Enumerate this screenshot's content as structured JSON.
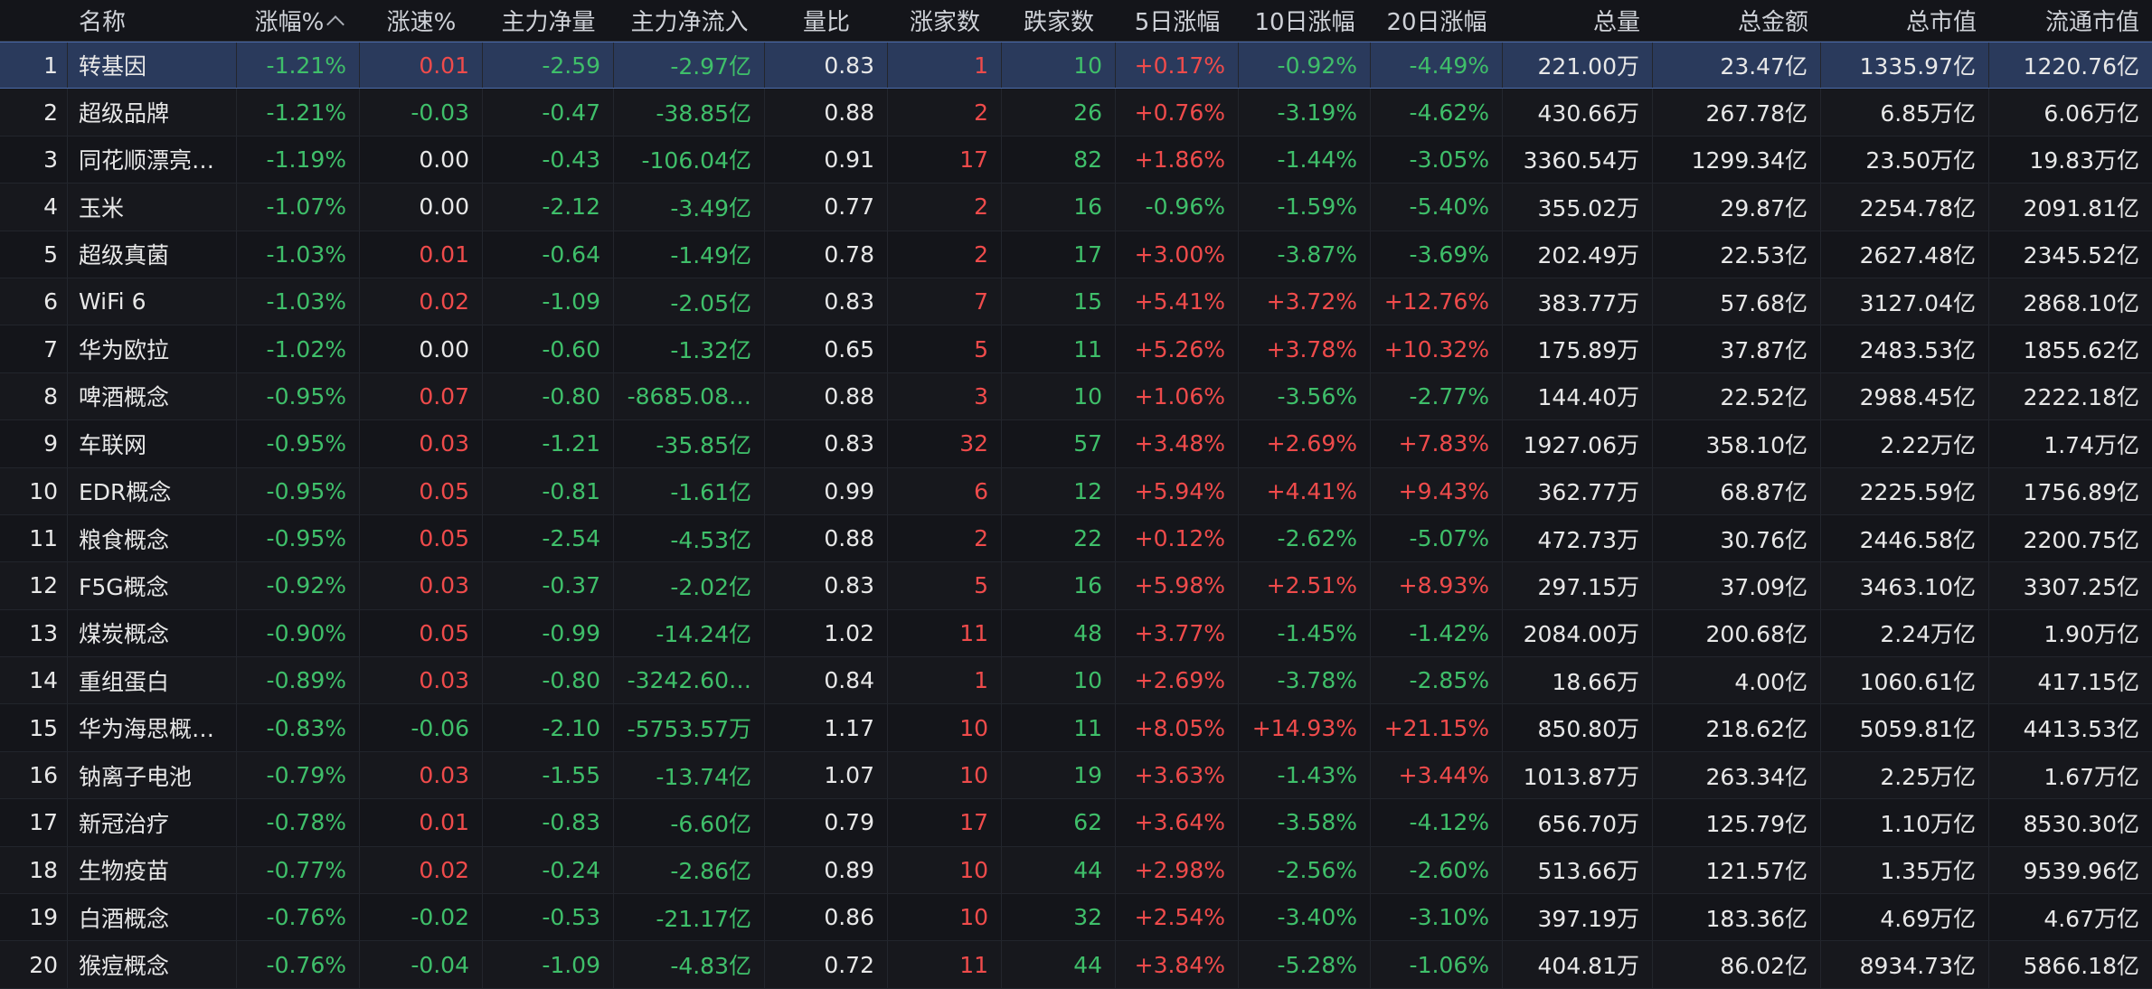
{
  "columns": {
    "name": "名称",
    "change_pct": "涨幅%",
    "speed_pct": "涨速%",
    "main_net": "主力净量",
    "main_inflow": "主力净流入",
    "volume_ratio": "量比",
    "up_count": "涨家数",
    "down_count": "跌家数",
    "d5": "5日涨幅",
    "d10": "10日涨幅",
    "d20": "20日涨幅",
    "volume": "总量",
    "amount": "总金额",
    "market_cap": "总市值",
    "float_cap": "流通市值"
  },
  "colors": {
    "up": "#ef4b4b",
    "down": "#3fbf6a",
    "selected_bg": "#2a3a5c"
  },
  "rows": [
    {
      "idx": "1",
      "name": "转基因",
      "chg": "-1.21%",
      "spd": "0.01",
      "net": "-2.59",
      "inflow": "-2.97亿",
      "vr": "0.83",
      "upc": "1",
      "dnc": "10",
      "d5": "+0.17%",
      "d10": "-0.92%",
      "d20": "-4.49%",
      "vol": "221.00万",
      "amt": "23.47亿",
      "mcap": "1335.97亿",
      "fcap": "1220.76亿"
    },
    {
      "idx": "2",
      "name": "超级品牌",
      "chg": "-1.21%",
      "spd": "-0.03",
      "net": "-0.47",
      "inflow": "-38.85亿",
      "vr": "0.88",
      "upc": "2",
      "dnc": "26",
      "d5": "+0.76%",
      "d10": "-3.19%",
      "d20": "-4.62%",
      "vol": "430.66万",
      "amt": "267.78亿",
      "mcap": "6.85万亿",
      "fcap": "6.06万亿"
    },
    {
      "idx": "3",
      "name": "同花顺漂亮…",
      "chg": "-1.19%",
      "spd": "0.00",
      "net": "-0.43",
      "inflow": "-106.04亿",
      "vr": "0.91",
      "upc": "17",
      "dnc": "82",
      "d5": "+1.86%",
      "d10": "-1.44%",
      "d20": "-3.05%",
      "vol": "3360.54万",
      "amt": "1299.34亿",
      "mcap": "23.50万亿",
      "fcap": "19.83万亿"
    },
    {
      "idx": "4",
      "name": "玉米",
      "chg": "-1.07%",
      "spd": "0.00",
      "net": "-2.12",
      "inflow": "-3.49亿",
      "vr": "0.77",
      "upc": "2",
      "dnc": "16",
      "d5": "-0.96%",
      "d10": "-1.59%",
      "d20": "-5.40%",
      "vol": "355.02万",
      "amt": "29.87亿",
      "mcap": "2254.78亿",
      "fcap": "2091.81亿"
    },
    {
      "idx": "5",
      "name": "超级真菌",
      "chg": "-1.03%",
      "spd": "0.01",
      "net": "-0.64",
      "inflow": "-1.49亿",
      "vr": "0.78",
      "upc": "2",
      "dnc": "17",
      "d5": "+3.00%",
      "d10": "-3.87%",
      "d20": "-3.69%",
      "vol": "202.49万",
      "amt": "22.53亿",
      "mcap": "2627.48亿",
      "fcap": "2345.52亿"
    },
    {
      "idx": "6",
      "name": "WiFi 6",
      "chg": "-1.03%",
      "spd": "0.02",
      "net": "-1.09",
      "inflow": "-2.05亿",
      "vr": "0.83",
      "upc": "7",
      "dnc": "15",
      "d5": "+5.41%",
      "d10": "+3.72%",
      "d20": "+12.76%",
      "vol": "383.77万",
      "amt": "57.68亿",
      "mcap": "3127.04亿",
      "fcap": "2868.10亿"
    },
    {
      "idx": "7",
      "name": "华为欧拉",
      "chg": "-1.02%",
      "spd": "0.00",
      "net": "-0.60",
      "inflow": "-1.32亿",
      "vr": "0.65",
      "upc": "5",
      "dnc": "11",
      "d5": "+5.26%",
      "d10": "+3.78%",
      "d20": "+10.32%",
      "vol": "175.89万",
      "amt": "37.87亿",
      "mcap": "2483.53亿",
      "fcap": "1855.62亿"
    },
    {
      "idx": "8",
      "name": "啤酒概念",
      "chg": "-0.95%",
      "spd": "0.07",
      "net": "-0.80",
      "inflow": "-8685.08…",
      "vr": "0.88",
      "upc": "3",
      "dnc": "10",
      "d5": "+1.06%",
      "d10": "-3.56%",
      "d20": "-2.77%",
      "vol": "144.40万",
      "amt": "22.52亿",
      "mcap": "2988.45亿",
      "fcap": "2222.18亿"
    },
    {
      "idx": "9",
      "name": "车联网",
      "chg": "-0.95%",
      "spd": "0.03",
      "net": "-1.21",
      "inflow": "-35.85亿",
      "vr": "0.83",
      "upc": "32",
      "dnc": "57",
      "d5": "+3.48%",
      "d10": "+2.69%",
      "d20": "+7.83%",
      "vol": "1927.06万",
      "amt": "358.10亿",
      "mcap": "2.22万亿",
      "fcap": "1.74万亿"
    },
    {
      "idx": "10",
      "name": "EDR概念",
      "chg": "-0.95%",
      "spd": "0.05",
      "net": "-0.81",
      "inflow": "-1.61亿",
      "vr": "0.99",
      "upc": "6",
      "dnc": "12",
      "d5": "+5.94%",
      "d10": "+4.41%",
      "d20": "+9.43%",
      "vol": "362.77万",
      "amt": "68.87亿",
      "mcap": "2225.59亿",
      "fcap": "1756.89亿"
    },
    {
      "idx": "11",
      "name": "粮食概念",
      "chg": "-0.95%",
      "spd": "0.05",
      "net": "-2.54",
      "inflow": "-4.53亿",
      "vr": "0.88",
      "upc": "2",
      "dnc": "22",
      "d5": "+0.12%",
      "d10": "-2.62%",
      "d20": "-5.07%",
      "vol": "472.73万",
      "amt": "30.76亿",
      "mcap": "2446.58亿",
      "fcap": "2200.75亿"
    },
    {
      "idx": "12",
      "name": "F5G概念",
      "chg": "-0.92%",
      "spd": "0.03",
      "net": "-0.37",
      "inflow": "-2.02亿",
      "vr": "0.83",
      "upc": "5",
      "dnc": "16",
      "d5": "+5.98%",
      "d10": "+2.51%",
      "d20": "+8.93%",
      "vol": "297.15万",
      "amt": "37.09亿",
      "mcap": "3463.10亿",
      "fcap": "3307.25亿"
    },
    {
      "idx": "13",
      "name": "煤炭概念",
      "chg": "-0.90%",
      "spd": "0.05",
      "net": "-0.99",
      "inflow": "-14.24亿",
      "vr": "1.02",
      "upc": "11",
      "dnc": "48",
      "d5": "+3.77%",
      "d10": "-1.45%",
      "d20": "-1.42%",
      "vol": "2084.00万",
      "amt": "200.68亿",
      "mcap": "2.24万亿",
      "fcap": "1.90万亿"
    },
    {
      "idx": "14",
      "name": "重组蛋白",
      "chg": "-0.89%",
      "spd": "0.03",
      "net": "-0.80",
      "inflow": "-3242.60…",
      "vr": "0.84",
      "upc": "1",
      "dnc": "10",
      "d5": "+2.69%",
      "d10": "-3.78%",
      "d20": "-2.85%",
      "vol": "18.66万",
      "amt": "4.00亿",
      "mcap": "1060.61亿",
      "fcap": "417.15亿"
    },
    {
      "idx": "15",
      "name": "华为海思概…",
      "chg": "-0.83%",
      "spd": "-0.06",
      "net": "-2.10",
      "inflow": "-5753.57万",
      "vr": "1.17",
      "upc": "10",
      "dnc": "11",
      "d5": "+8.05%",
      "d10": "+14.93%",
      "d20": "+21.15%",
      "vol": "850.80万",
      "amt": "218.62亿",
      "mcap": "5059.81亿",
      "fcap": "4413.53亿"
    },
    {
      "idx": "16",
      "name": "钠离子电池",
      "chg": "-0.79%",
      "spd": "0.03",
      "net": "-1.55",
      "inflow": "-13.74亿",
      "vr": "1.07",
      "upc": "10",
      "dnc": "19",
      "d5": "+3.63%",
      "d10": "-1.43%",
      "d20": "+3.44%",
      "vol": "1013.87万",
      "amt": "263.34亿",
      "mcap": "2.25万亿",
      "fcap": "1.67万亿"
    },
    {
      "idx": "17",
      "name": "新冠治疗",
      "chg": "-0.78%",
      "spd": "0.01",
      "net": "-0.83",
      "inflow": "-6.60亿",
      "vr": "0.79",
      "upc": "17",
      "dnc": "62",
      "d5": "+3.64%",
      "d10": "-3.58%",
      "d20": "-4.12%",
      "vol": "656.70万",
      "amt": "125.79亿",
      "mcap": "1.10万亿",
      "fcap": "8530.30亿"
    },
    {
      "idx": "18",
      "name": "生物疫苗",
      "chg": "-0.77%",
      "spd": "0.02",
      "net": "-0.24",
      "inflow": "-2.86亿",
      "vr": "0.89",
      "upc": "10",
      "dnc": "44",
      "d5": "+2.98%",
      "d10": "-2.56%",
      "d20": "-2.60%",
      "vol": "513.66万",
      "amt": "121.57亿",
      "mcap": "1.35万亿",
      "fcap": "9539.96亿"
    },
    {
      "idx": "19",
      "name": "白酒概念",
      "chg": "-0.76%",
      "spd": "-0.02",
      "net": "-0.53",
      "inflow": "-21.17亿",
      "vr": "0.86",
      "upc": "10",
      "dnc": "32",
      "d5": "+2.54%",
      "d10": "-3.40%",
      "d20": "-3.10%",
      "vol": "397.19万",
      "amt": "183.36亿",
      "mcap": "4.69万亿",
      "fcap": "4.67万亿"
    },
    {
      "idx": "20",
      "name": "猴痘概念",
      "chg": "-0.76%",
      "spd": "-0.04",
      "net": "-1.09",
      "inflow": "-4.83亿",
      "vr": "0.72",
      "upc": "11",
      "dnc": "44",
      "d5": "+3.84%",
      "d10": "-5.28%",
      "d20": "-1.06%",
      "vol": "404.81万",
      "amt": "86.02亿",
      "mcap": "8934.73亿",
      "fcap": "5866.18亿"
    }
  ]
}
